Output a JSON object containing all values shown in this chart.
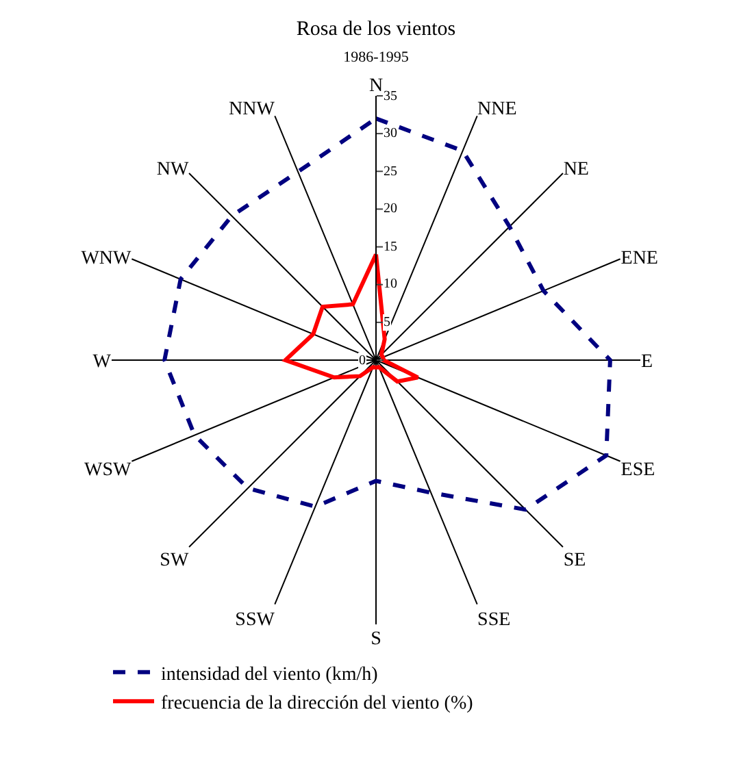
{
  "chart_data": {
    "type": "radar",
    "title": "Rosa de los vientos",
    "subtitle": "1986-1995",
    "categories": [
      "N",
      "NNE",
      "NE",
      "ENE",
      "E",
      "ESE",
      "SE",
      "SSE",
      "S",
      "SSW",
      "SW",
      "WSW",
      "W",
      "WNW",
      "NW",
      "NNW"
    ],
    "series": [
      {
        "name": "intensidad del viento (km/h)",
        "color": "#000080",
        "line_style": "dashed",
        "values": [
          32,
          30,
          25,
          24,
          31,
          33,
          28,
          19,
          16,
          21,
          24,
          26,
          28,
          28,
          27,
          27
        ]
      },
      {
        "name": "frecuencia de la dirección del viento (%)",
        "color": "#ff0000",
        "line_style": "solid",
        "values": [
          14,
          3,
          1,
          1,
          1,
          6,
          4,
          1,
          1,
          1,
          3,
          6,
          12,
          9,
          10,
          8
        ]
      }
    ],
    "ylim": [
      0,
      35
    ],
    "yticks": [
      0,
      5,
      10,
      15,
      20,
      25,
      30,
      35
    ],
    "grid": "x",
    "legend": "bottom",
    "marker": "none"
  }
}
